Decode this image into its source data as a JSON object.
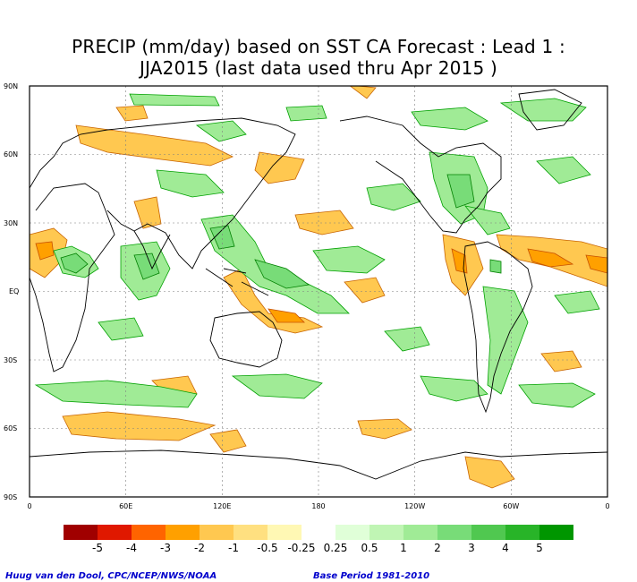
{
  "title": {
    "line1": "PRECIP (mm/day) based on SST CA Forecast : Lead 1 :",
    "line2": "JJA2015 (last data used thru Apr 2015 )"
  },
  "lat_labels": [
    "90N",
    "60N",
    "30N",
    "EQ",
    "30S",
    "60S",
    "90S"
  ],
  "lon_labels": [
    "0",
    "60E",
    "120E",
    "180",
    "120W",
    "60W",
    "0"
  ],
  "legend": {
    "labels": [
      "-5",
      "-4",
      "-3",
      "-2",
      "-1",
      "-0.5",
      "-0.25",
      "0.25",
      "0.5",
      "1",
      "2",
      "3",
      "4",
      "5"
    ],
    "colors": [
      "#a00000",
      "#e01800",
      "#ff6400",
      "#ffa000",
      "#ffc850",
      "#ffe080",
      "#fff8b4",
      "#ffffff",
      "#e0ffd8",
      "#c0f5b4",
      "#a0eb96",
      "#78dc78",
      "#50c850",
      "#28b428",
      "#009600"
    ]
  },
  "footer": {
    "credit": "Huug van den Dool, CPC/NCEP/NWS/NOAA",
    "base_period": "Base Period 1981-2010"
  }
}
